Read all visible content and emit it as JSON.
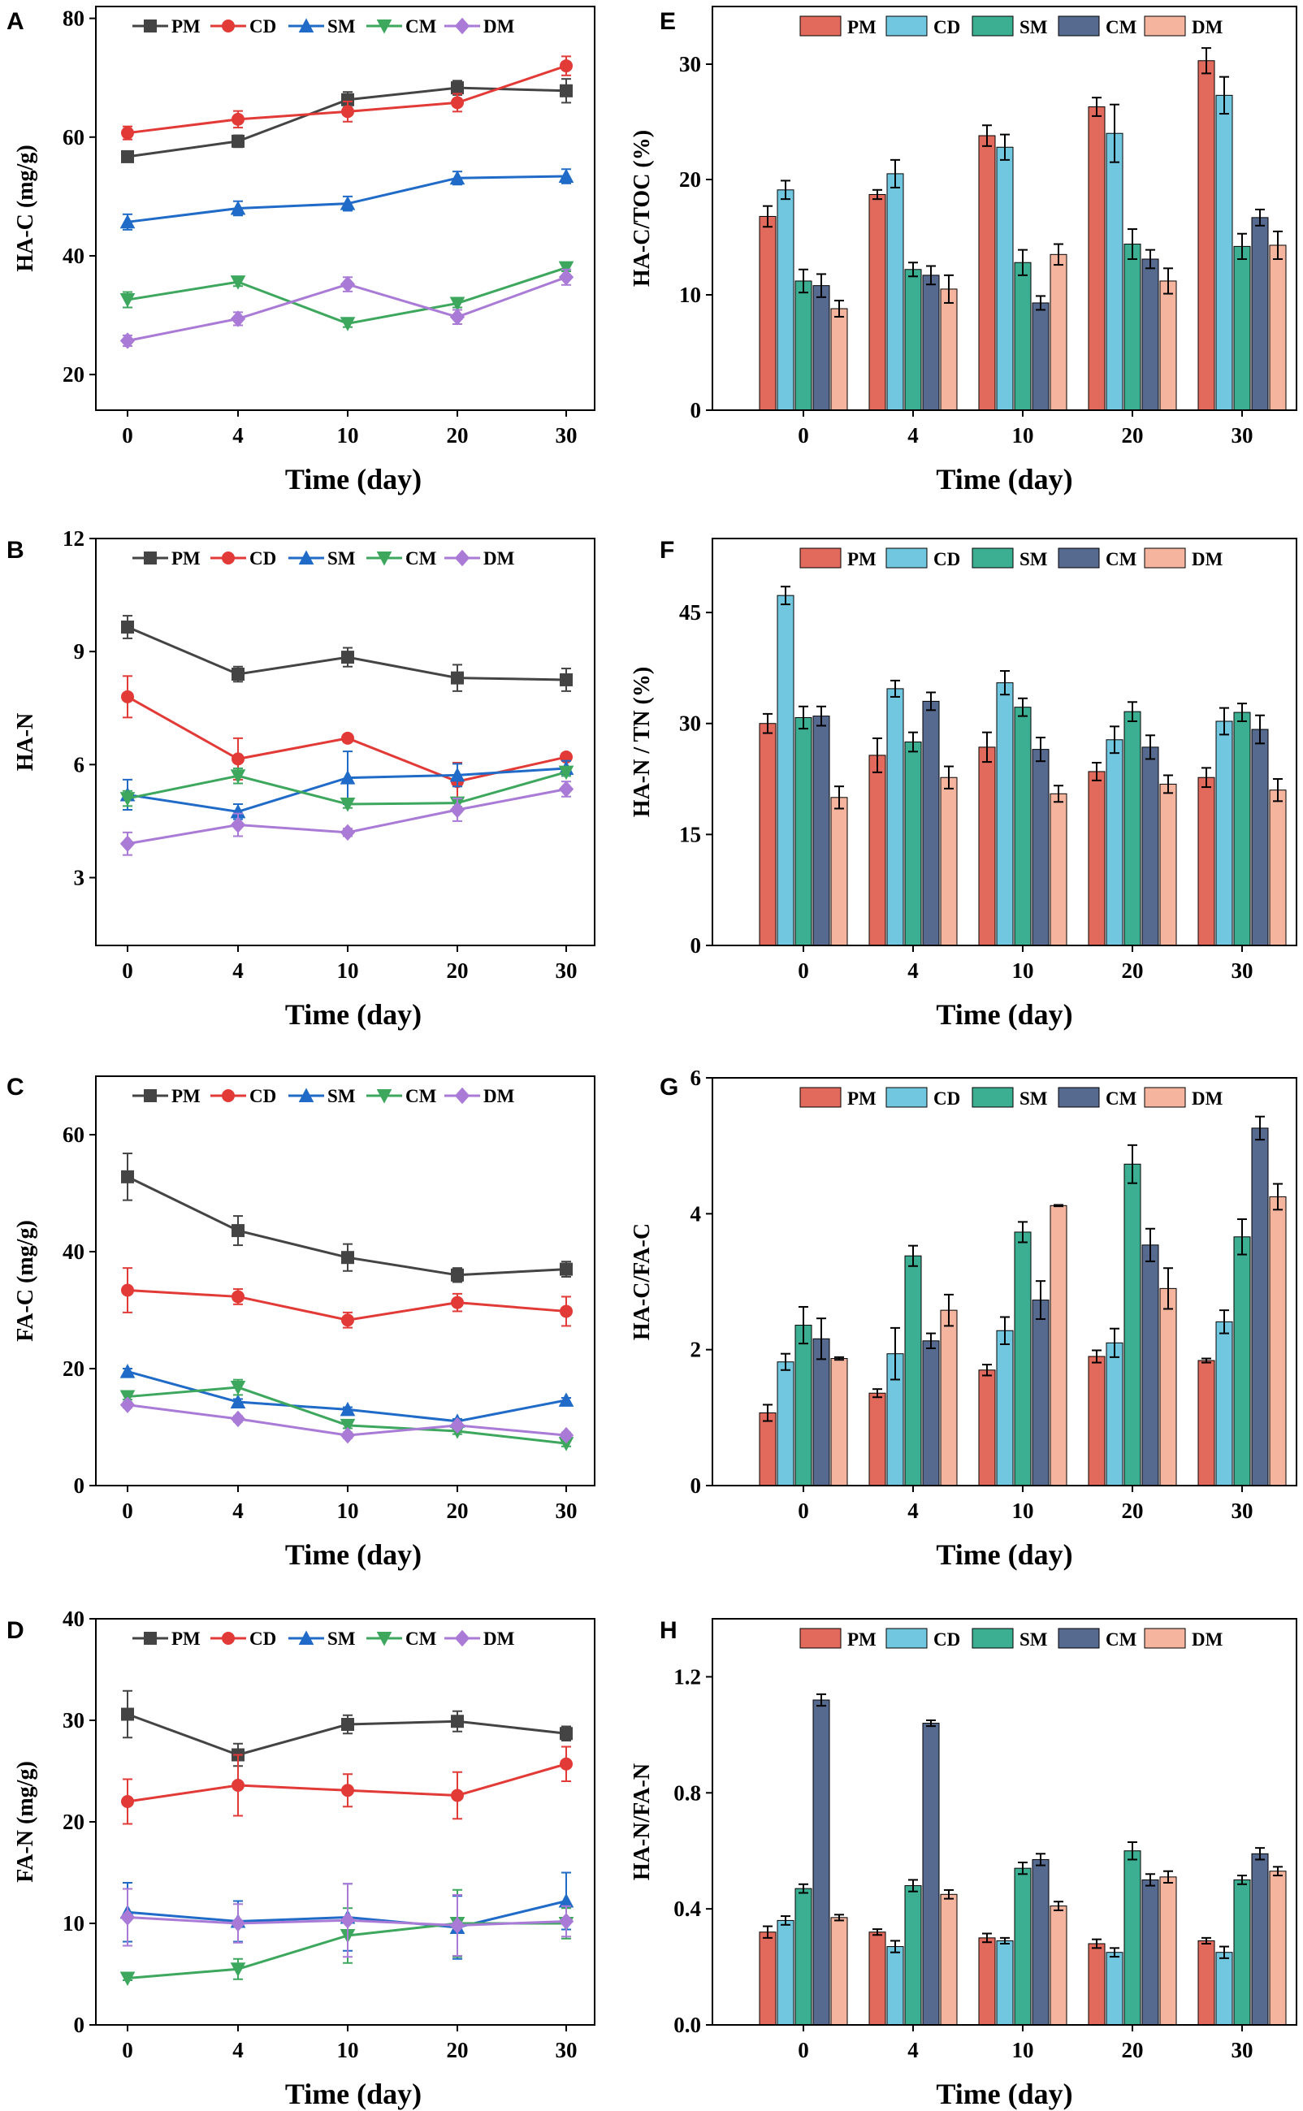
{
  "figure": {
    "series_colors": {
      "PM": "#444444",
      "CD": "#E23B37",
      "SM": "#1F6BC7",
      "CM": "#3DA75E",
      "DM": "#A97BD7"
    },
    "bar_colors": {
      "PM": "#E26A5C",
      "CD": "#72C7E0",
      "SM": "#3CAF92",
      "CM": "#56698F",
      "DM": "#F4B49E"
    },
    "markers": {
      "PM": "square-marker",
      "CD": "circle-marker",
      "SM": "triangle-up-marker",
      "CM": "triangle-down-marker",
      "DM": "diamond-marker"
    }
  },
  "chart_data": [
    {
      "id": "A",
      "letter": "A",
      "type": "line",
      "xlabel": "Time (day)",
      "ylabel": "HA-C (mg/g)",
      "x_categories": [
        "0",
        "4",
        "10",
        "20",
        "30"
      ],
      "ylim": [
        14,
        82
      ],
      "yticks": [
        20,
        40,
        60,
        80
      ],
      "ytick_labels": [
        "20",
        "40",
        "60",
        "80"
      ],
      "legend_labels": [
        "PM",
        "CD",
        "SM",
        "CM",
        "DM"
      ],
      "series": [
        {
          "name": "PM",
          "values": [
            56.7,
            59.3,
            66.3,
            68.3,
            67.8
          ],
          "errors": [
            0.9,
            1.0,
            1.3,
            1.2,
            2.0
          ]
        },
        {
          "name": "CD",
          "values": [
            60.7,
            63.0,
            64.3,
            65.8,
            72.0
          ],
          "errors": [
            1.1,
            1.4,
            1.7,
            1.5,
            1.6
          ]
        },
        {
          "name": "SM",
          "values": [
            45.7,
            48.0,
            48.8,
            53.1,
            53.4
          ],
          "errors": [
            1.3,
            1.2,
            1.2,
            1.1,
            1.2
          ]
        },
        {
          "name": "CM",
          "values": [
            32.6,
            35.6,
            28.6,
            32.0,
            38.0
          ],
          "errors": [
            1.3,
            0.7,
            0.6,
            0.7,
            0.6
          ]
        },
        {
          "name": "DM",
          "values": [
            25.7,
            29.4,
            35.2,
            29.7,
            36.4
          ],
          "errors": [
            0.9,
            1.1,
            1.2,
            1.2,
            1.3
          ]
        }
      ]
    },
    {
      "id": "B",
      "letter": "B",
      "type": "line",
      "xlabel": "Time (day)",
      "ylabel": "HA-N",
      "x_categories": [
        "0",
        "4",
        "10",
        "20",
        "30"
      ],
      "ylim": [
        1.2,
        12
      ],
      "yticks": [
        3,
        6,
        9,
        12
      ],
      "ytick_labels": [
        "3",
        "6",
        "9",
        "12"
      ],
      "legend_labels": [
        "PM",
        "CD",
        "SM",
        "CM",
        "DM"
      ],
      "series": [
        {
          "name": "PM",
          "values": [
            9.65,
            8.4,
            8.85,
            8.3,
            8.25
          ],
          "errors": [
            0.3,
            0.2,
            0.25,
            0.35,
            0.3
          ]
        },
        {
          "name": "CD",
          "values": [
            7.8,
            6.15,
            6.7,
            5.55,
            6.2
          ],
          "errors": [
            0.55,
            0.55,
            0.1,
            0.5,
            0.1
          ]
        },
        {
          "name": "SM",
          "values": [
            5.2,
            4.75,
            5.65,
            5.72,
            5.9
          ],
          "errors": [
            0.4,
            0.2,
            0.7,
            0.3,
            0.2
          ]
        },
        {
          "name": "CM",
          "values": [
            5.1,
            5.7,
            4.95,
            4.98,
            5.8
          ],
          "errors": [
            0.2,
            0.2,
            0.1,
            0.1,
            0.1
          ]
        },
        {
          "name": "DM",
          "values": [
            3.9,
            4.4,
            4.2,
            4.8,
            5.35
          ],
          "errors": [
            0.3,
            0.3,
            0.1,
            0.3,
            0.2
          ]
        }
      ]
    },
    {
      "id": "C",
      "letter": "C",
      "type": "line",
      "xlabel": "Time (day)",
      "ylabel": "FA-C (mg/g)",
      "x_categories": [
        "0",
        "4",
        "10",
        "20",
        "30"
      ],
      "ylim": [
        0,
        70
      ],
      "yticks": [
        0,
        20,
        40,
        60
      ],
      "ytick_labels": [
        "0",
        "20",
        "40",
        "60"
      ],
      "legend_labels": [
        "PM",
        "CD",
        "SM",
        "CM",
        "DM"
      ],
      "series": [
        {
          "name": "PM",
          "values": [
            52.8,
            43.6,
            39.0,
            36.0,
            37.0
          ],
          "errors": [
            4.0,
            2.5,
            2.3,
            1.2,
            1.3
          ]
        },
        {
          "name": "CD",
          "values": [
            33.4,
            32.3,
            28.3,
            31.3,
            29.8
          ],
          "errors": [
            3.8,
            1.3,
            1.3,
            1.5,
            2.5
          ]
        },
        {
          "name": "SM",
          "values": [
            19.5,
            14.3,
            13.0,
            11.0,
            14.6
          ],
          "errors": [
            0.5,
            0.5,
            0.4,
            0.4,
            0.4
          ]
        },
        {
          "name": "CM",
          "values": [
            15.2,
            16.8,
            10.3,
            9.3,
            7.2
          ],
          "errors": [
            0.5,
            1.3,
            0.5,
            0.5,
            0.5
          ]
        },
        {
          "name": "DM",
          "values": [
            13.8,
            11.4,
            8.6,
            10.3,
            8.6
          ],
          "errors": [
            0.5,
            0.5,
            0.5,
            0.5,
            0.5
          ]
        }
      ]
    },
    {
      "id": "D",
      "letter": "D",
      "type": "line",
      "xlabel": "Time (day)",
      "ylabel": "FA-N (mg/g)",
      "x_categories": [
        "0",
        "4",
        "10",
        "20",
        "30"
      ],
      "ylim": [
        0,
        40
      ],
      "yticks": [
        0,
        10,
        20,
        30,
        40
      ],
      "ytick_labels": [
        "0",
        "10",
        "20",
        "30",
        "40"
      ],
      "legend_labels": [
        "PM",
        "CD",
        "SM",
        "CM",
        "DM"
      ],
      "series": [
        {
          "name": "PM",
          "values": [
            30.6,
            26.6,
            29.6,
            29.9,
            28.7
          ],
          "errors": [
            2.3,
            1.1,
            0.9,
            1.0,
            0.7
          ]
        },
        {
          "name": "CD",
          "values": [
            22.0,
            23.6,
            23.1,
            22.6,
            25.7
          ],
          "errors": [
            2.2,
            3.0,
            1.6,
            2.3,
            1.7
          ]
        },
        {
          "name": "SM",
          "values": [
            11.1,
            10.2,
            10.6,
            9.6,
            12.2
          ],
          "errors": [
            2.9,
            2.0,
            3.3,
            3.1,
            2.8
          ]
        },
        {
          "name": "CM",
          "values": [
            4.6,
            5.5,
            8.8,
            10.0,
            10.0
          ],
          "errors": [
            0.2,
            1.0,
            2.7,
            3.3,
            1.5
          ]
        },
        {
          "name": "DM",
          "values": [
            10.6,
            10.0,
            10.3,
            9.8,
            10.2
          ],
          "errors": [
            2.8,
            1.9,
            3.6,
            3.0,
            1.5
          ]
        }
      ]
    },
    {
      "id": "E",
      "letter": "E",
      "type": "bar",
      "xlabel": "Time (day)",
      "ylabel": "HA-C/TOC (%)",
      "categories": [
        "0",
        "4",
        "10",
        "20",
        "30"
      ],
      "ylim": [
        0,
        35
      ],
      "yticks": [
        0,
        10,
        20,
        30
      ],
      "ytick_labels": [
        "0",
        "10",
        "20",
        "30"
      ],
      "legend_labels": [
        "PM",
        "CD",
        "SM",
        "CM",
        "DM"
      ],
      "series": [
        {
          "name": "PM",
          "values": [
            16.8,
            18.7,
            23.8,
            26.3,
            30.3
          ],
          "errors": [
            0.9,
            0.4,
            0.9,
            0.8,
            1.1
          ]
        },
        {
          "name": "CD",
          "values": [
            19.1,
            20.5,
            22.8,
            24.0,
            27.3
          ],
          "errors": [
            0.8,
            1.2,
            1.1,
            2.5,
            1.6
          ]
        },
        {
          "name": "SM",
          "values": [
            11.2,
            12.2,
            12.8,
            14.4,
            14.2
          ],
          "errors": [
            1.0,
            0.6,
            1.1,
            1.3,
            1.1
          ]
        },
        {
          "name": "CM",
          "values": [
            10.8,
            11.7,
            9.3,
            13.1,
            16.7
          ],
          "errors": [
            1.0,
            0.8,
            0.6,
            0.8,
            0.7
          ]
        },
        {
          "name": "DM",
          "values": [
            8.8,
            10.5,
            13.5,
            11.2,
            14.3
          ],
          "errors": [
            0.7,
            1.2,
            0.9,
            1.1,
            1.2
          ]
        }
      ]
    },
    {
      "id": "F",
      "letter": "F",
      "type": "bar",
      "xlabel": "Time (day)",
      "ylabel": "HA-N / TN (%)",
      "categories": [
        "0",
        "4",
        "10",
        "20",
        "30"
      ],
      "ylim": [
        0,
        55
      ],
      "yticks": [
        0,
        15,
        30,
        45
      ],
      "ytick_labels": [
        "0",
        "15",
        "30",
        "45"
      ],
      "legend_labels": [
        "PM",
        "CD",
        "SM",
        "CM",
        "DM"
      ],
      "series": [
        {
          "name": "PM",
          "values": [
            30.0,
            25.7,
            26.8,
            23.5,
            22.7
          ],
          "errors": [
            1.3,
            2.3,
            2.0,
            1.2,
            1.3
          ]
        },
        {
          "name": "CD",
          "values": [
            47.3,
            34.7,
            35.5,
            27.8,
            30.3
          ],
          "errors": [
            1.2,
            1.1,
            1.6,
            1.8,
            1.8
          ]
        },
        {
          "name": "SM",
          "values": [
            30.8,
            27.5,
            32.2,
            31.6,
            31.5
          ],
          "errors": [
            1.5,
            1.3,
            1.2,
            1.3,
            1.2
          ]
        },
        {
          "name": "CM",
          "values": [
            31.0,
            33.0,
            26.5,
            26.8,
            29.2
          ],
          "errors": [
            1.3,
            1.2,
            1.6,
            1.6,
            1.9
          ]
        },
        {
          "name": "DM",
          "values": [
            20.0,
            22.7,
            20.5,
            21.8,
            21.0
          ],
          "errors": [
            1.5,
            1.5,
            1.1,
            1.2,
            1.5
          ]
        }
      ]
    },
    {
      "id": "G",
      "letter": "G",
      "type": "bar",
      "xlabel": "Time (day)",
      "ylabel": "HA-C/FA-C",
      "categories": [
        "0",
        "4",
        "10",
        "20",
        "30"
      ],
      "ylim": [
        0,
        6
      ],
      "yticks": [
        0,
        2,
        4,
        6
      ],
      "ytick_labels": [
        "0",
        "2",
        "4",
        "6"
      ],
      "legend_labels": [
        "PM",
        "CD",
        "SM",
        "CM",
        "DM"
      ],
      "series": [
        {
          "name": "PM",
          "values": [
            1.07,
            1.36,
            1.7,
            1.9,
            1.84
          ],
          "errors": [
            0.12,
            0.06,
            0.08,
            0.09,
            0.03
          ]
        },
        {
          "name": "CD",
          "values": [
            1.82,
            1.94,
            2.28,
            2.1,
            2.41
          ],
          "errors": [
            0.12,
            0.38,
            0.2,
            0.21,
            0.17
          ]
        },
        {
          "name": "SM",
          "values": [
            2.36,
            3.38,
            3.73,
            4.73,
            3.66
          ],
          "errors": [
            0.27,
            0.15,
            0.15,
            0.28,
            0.26
          ]
        },
        {
          "name": "CM",
          "values": [
            2.16,
            2.13,
            2.73,
            3.54,
            5.26
          ],
          "errors": [
            0.3,
            0.11,
            0.28,
            0.24,
            0.17
          ]
        },
        {
          "name": "DM",
          "values": [
            1.87,
            2.58,
            4.12,
            2.9,
            4.25
          ],
          "errors": [
            0.02,
            0.23,
            0.01,
            0.3,
            0.19
          ]
        }
      ]
    },
    {
      "id": "H",
      "letter": "H",
      "type": "bar",
      "xlabel": "Time (day)",
      "ylabel": "HA-N/FA-N",
      "categories": [
        "0",
        "4",
        "10",
        "20",
        "30"
      ],
      "ylim": [
        0,
        1.4
      ],
      "yticks": [
        0,
        0.4,
        0.8,
        1.2
      ],
      "ytick_labels": [
        "0.0",
        "0.4",
        "0.8",
        "1.2"
      ],
      "legend_labels": [
        "PM",
        "CD",
        "SM",
        "CM",
        "DM"
      ],
      "series": [
        {
          "name": "PM",
          "values": [
            0.32,
            0.32,
            0.3,
            0.28,
            0.29
          ],
          "errors": [
            0.02,
            0.01,
            0.015,
            0.015,
            0.01
          ]
        },
        {
          "name": "CD",
          "values": [
            0.36,
            0.27,
            0.29,
            0.25,
            0.25
          ],
          "errors": [
            0.015,
            0.02,
            0.01,
            0.015,
            0.02
          ]
        },
        {
          "name": "SM",
          "values": [
            0.47,
            0.48,
            0.54,
            0.6,
            0.5
          ],
          "errors": [
            0.015,
            0.02,
            0.02,
            0.03,
            0.015
          ]
        },
        {
          "name": "CM",
          "values": [
            1.12,
            1.04,
            0.57,
            0.5,
            0.59
          ],
          "errors": [
            0.02,
            0.01,
            0.02,
            0.02,
            0.02
          ]
        },
        {
          "name": "DM",
          "values": [
            0.37,
            0.45,
            0.41,
            0.51,
            0.53
          ],
          "errors": [
            0.01,
            0.015,
            0.015,
            0.02,
            0.015
          ]
        }
      ]
    }
  ]
}
